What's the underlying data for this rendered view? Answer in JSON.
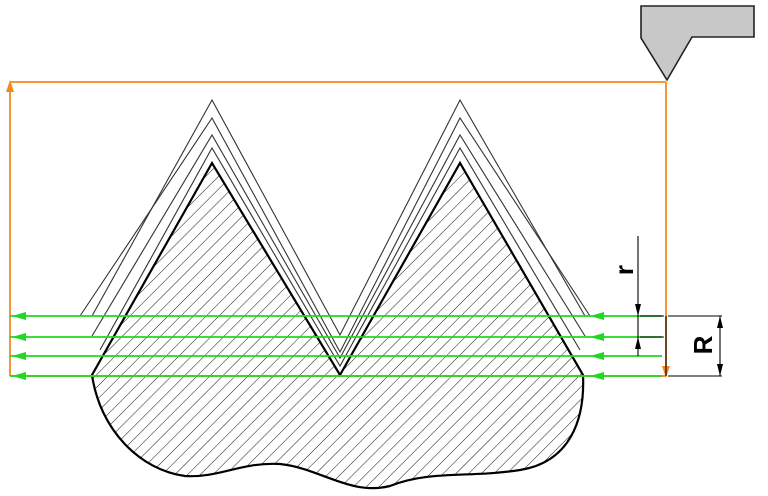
{
  "diagram": {
    "labels": {
      "small_radius": "r",
      "large_radius": "R"
    },
    "colors": {
      "tool_path": "#f28a1e",
      "cut_passes": "#1fd81f",
      "workpiece_outline": "#000000",
      "hatch": "#000000",
      "offset_contours": "#444444",
      "tool_fill": "#c8c8c8",
      "dimension": "#000000"
    },
    "cut_pass_count": 4,
    "thread_tooth_count": 2,
    "offset_contour_count": 3
  }
}
